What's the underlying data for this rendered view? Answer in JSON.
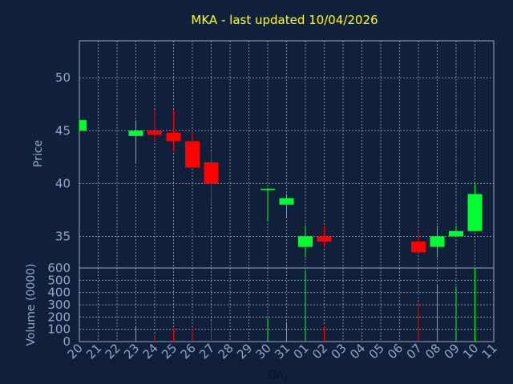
{
  "chart_data": {
    "type": "candlestick",
    "title": "MKA - last updated 10/04/2026",
    "ylabel": "Price",
    "volume_label": "Volume (0000)",
    "xlabel": "Day",
    "x_ticks": [
      "20",
      "21",
      "22",
      "23",
      "24",
      "25",
      "26",
      "27",
      "28",
      "29",
      "30",
      "31",
      "01",
      "02",
      "03",
      "04",
      "05",
      "06",
      "07",
      "08",
      "09",
      "10",
      "11"
    ],
    "price_ylim": [
      32.0,
      53.5
    ],
    "price_ticks": [
      35,
      40,
      45,
      50
    ],
    "volume_ylim": [
      0,
      600
    ],
    "volume_ticks": [
      0,
      100,
      200,
      300,
      400,
      500,
      600
    ],
    "grid": true,
    "colors": {
      "up": "#00ff30",
      "down": "#ff0000",
      "background": "#10203a",
      "title": "#ffff00",
      "axis_text": "#8fa8c8"
    },
    "candles": [
      {
        "x": "20",
        "open": 45.0,
        "high": 46.0,
        "low": 45.0,
        "close": 46.0,
        "volume": 0
      },
      {
        "x": "23",
        "open": 44.5,
        "high": 46.0,
        "low": 42.0,
        "close": 45.0,
        "volume": 120
      },
      {
        "x": "24",
        "open": 45.0,
        "high": 47.0,
        "low": 44.0,
        "close": 44.6,
        "volume": 50
      },
      {
        "x": "25",
        "open": 44.8,
        "high": 47.0,
        "low": 43.0,
        "close": 44.0,
        "volume": 110
      },
      {
        "x": "26",
        "open": 44.0,
        "high": 45.0,
        "low": 41.5,
        "close": 41.5,
        "volume": 110
      },
      {
        "x": "27",
        "open": 42.0,
        "high": 43.0,
        "low": 38.0,
        "close": 40.0,
        "volume": 170
      },
      {
        "x": "30",
        "open": 39.4,
        "high": 39.6,
        "low": 36.5,
        "close": 39.5,
        "volume": 190
      },
      {
        "x": "31",
        "open": 38.0,
        "high": 39.0,
        "low": 36.8,
        "close": 38.6,
        "volume": 160
      },
      {
        "x": "01",
        "open": 34.0,
        "high": 36.0,
        "low": 33.0,
        "close": 35.0,
        "volume": 580
      },
      {
        "x": "02",
        "open": 35.0,
        "high": 36.0,
        "low": 34.0,
        "close": 34.5,
        "volume": 130
      },
      {
        "x": "07",
        "open": 34.5,
        "high": 35.5,
        "low": 33.5,
        "close": 33.5,
        "volume": 320
      },
      {
        "x": "08",
        "open": 34.0,
        "high": 36.0,
        "low": 33.0,
        "close": 35.0,
        "volume": 470
      },
      {
        "x": "09",
        "open": 35.0,
        "high": 36.0,
        "low": 35.0,
        "close": 35.5,
        "volume": 450
      },
      {
        "x": "10",
        "open": 35.5,
        "high": 40.0,
        "low": 35.5,
        "close": 39.0,
        "volume": 600
      }
    ]
  }
}
